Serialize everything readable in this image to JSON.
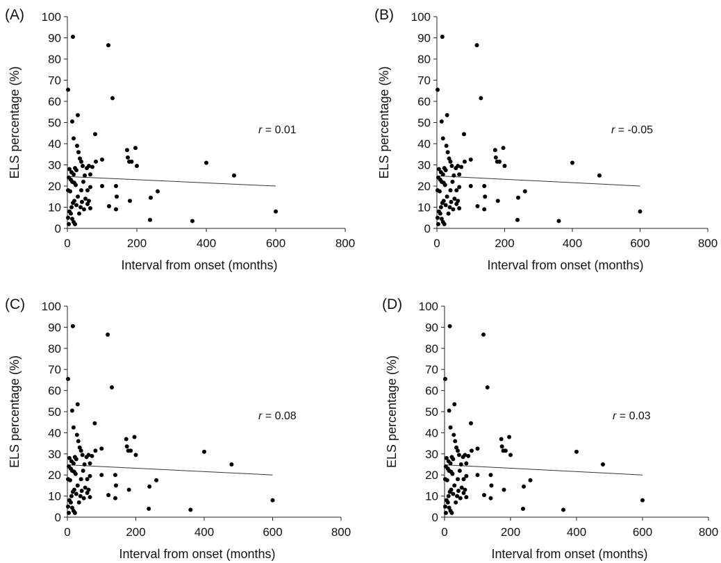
{
  "chart_data": [
    {
      "panel_label": "(A)",
      "type": "scatter",
      "xlabel": "Interval from onset (months)",
      "ylabel": "ELS percentage (%)",
      "xlim": [
        0,
        800
      ],
      "ylim": [
        0,
        100
      ],
      "xticks": [
        "0",
        "200",
        "400",
        "600",
        "800"
      ],
      "yticks": [
        "0",
        "10",
        "20",
        "30",
        "40",
        "50",
        "60",
        "70",
        "80",
        "90",
        "100"
      ],
      "grid": false,
      "annotation": {
        "symbol": "r",
        "text": " = 0.01"
      },
      "trendline": {
        "x": [
          0,
          600
        ],
        "y": [
          24.5,
          20.0
        ]
      },
      "points": [
        [
          2,
          65.5
        ],
        [
          16,
          90.5
        ],
        [
          118,
          86.5
        ],
        [
          130,
          61.5
        ],
        [
          30,
          53.5
        ],
        [
          14,
          50.5
        ],
        [
          18,
          42.5
        ],
        [
          80,
          44.5
        ],
        [
          28,
          39
        ],
        [
          32,
          36
        ],
        [
          36,
          33
        ],
        [
          40,
          31.5
        ],
        [
          44,
          29.5
        ],
        [
          6,
          28
        ],
        [
          12,
          26.5
        ],
        [
          18,
          25.5
        ],
        [
          22,
          28.5
        ],
        [
          26,
          27.5
        ],
        [
          4,
          24
        ],
        [
          10,
          23
        ],
        [
          14,
          22
        ],
        [
          20,
          21.5
        ],
        [
          24,
          20.5
        ],
        [
          2,
          18
        ],
        [
          8,
          17.5
        ],
        [
          46,
          22
        ],
        [
          50,
          25
        ],
        [
          56,
          28.5
        ],
        [
          62,
          29.5
        ],
        [
          66,
          25.5
        ],
        [
          72,
          29
        ],
        [
          82,
          31.5
        ],
        [
          100,
          32.5
        ],
        [
          58,
          18
        ],
        [
          66,
          19.5
        ],
        [
          100,
          20
        ],
        [
          172,
          37
        ],
        [
          174,
          33.5
        ],
        [
          178,
          31.5
        ],
        [
          185,
          31.5
        ],
        [
          196,
          38
        ],
        [
          200,
          29.5
        ],
        [
          140,
          20
        ],
        [
          142,
          15
        ],
        [
          120,
          10.5
        ],
        [
          140,
          9
        ],
        [
          180,
          13
        ],
        [
          240,
          14.5
        ],
        [
          260,
          17.5
        ],
        [
          238,
          4
        ],
        [
          360,
          3.5
        ],
        [
          400,
          31
        ],
        [
          480,
          25
        ],
        [
          600,
          8
        ],
        [
          6,
          8
        ],
        [
          10,
          7
        ],
        [
          14,
          4.5
        ],
        [
          18,
          3
        ],
        [
          22,
          2
        ],
        [
          2,
          5
        ],
        [
          16,
          12
        ],
        [
          20,
          13
        ],
        [
          26,
          11
        ],
        [
          30,
          15
        ],
        [
          38,
          10
        ],
        [
          42,
          12.5
        ],
        [
          48,
          9
        ],
        [
          52,
          14
        ],
        [
          58,
          11.5
        ],
        [
          62,
          13
        ],
        [
          66,
          9.5
        ],
        [
          4,
          2
        ],
        [
          12,
          10
        ],
        [
          34,
          7
        ],
        [
          40,
          18
        ]
      ]
    },
    {
      "panel_label": "(B)",
      "type": "scatter",
      "xlabel": "Interval from onset (months)",
      "ylabel": "ELS percentage (%)",
      "xlim": [
        0,
        800
      ],
      "ylim": [
        0,
        100
      ],
      "xticks": [
        "0",
        "200",
        "400",
        "600",
        "800"
      ],
      "yticks": [
        "0",
        "10",
        "20",
        "30",
        "40",
        "50",
        "60",
        "70",
        "80",
        "90",
        "100"
      ],
      "grid": false,
      "annotation": {
        "symbol": "r",
        "text": " = -0.05"
      },
      "trendline": {
        "x": [
          0,
          600
        ],
        "y": [
          24.8,
          20.0
        ]
      },
      "points": [
        [
          2,
          65.5
        ],
        [
          16,
          90.5
        ],
        [
          118,
          86.5
        ],
        [
          130,
          61.5
        ],
        [
          30,
          53.5
        ],
        [
          14,
          50.5
        ],
        [
          18,
          42.5
        ],
        [
          80,
          44.5
        ],
        [
          28,
          39
        ],
        [
          32,
          36
        ],
        [
          36,
          33
        ],
        [
          40,
          31.5
        ],
        [
          44,
          29.5
        ],
        [
          6,
          28
        ],
        [
          12,
          26.5
        ],
        [
          18,
          25.5
        ],
        [
          22,
          28.5
        ],
        [
          26,
          27.5
        ],
        [
          4,
          24
        ],
        [
          10,
          23
        ],
        [
          14,
          22
        ],
        [
          20,
          21.5
        ],
        [
          24,
          20.5
        ],
        [
          2,
          18
        ],
        [
          8,
          17.5
        ],
        [
          46,
          22
        ],
        [
          50,
          25
        ],
        [
          56,
          28.5
        ],
        [
          62,
          29.5
        ],
        [
          66,
          25.5
        ],
        [
          72,
          29
        ],
        [
          82,
          31.5
        ],
        [
          100,
          32.5
        ],
        [
          58,
          18
        ],
        [
          66,
          19.5
        ],
        [
          100,
          20
        ],
        [
          172,
          37
        ],
        [
          174,
          33.5
        ],
        [
          178,
          31.5
        ],
        [
          185,
          31.5
        ],
        [
          196,
          38
        ],
        [
          200,
          29.5
        ],
        [
          140,
          20
        ],
        [
          142,
          15
        ],
        [
          120,
          10.5
        ],
        [
          140,
          9
        ],
        [
          180,
          13
        ],
        [
          240,
          14.5
        ],
        [
          260,
          17.5
        ],
        [
          238,
          4
        ],
        [
          360,
          3.5
        ],
        [
          400,
          31
        ],
        [
          480,
          25
        ],
        [
          600,
          8
        ],
        [
          6,
          8
        ],
        [
          10,
          7
        ],
        [
          14,
          4.5
        ],
        [
          18,
          3
        ],
        [
          22,
          2
        ],
        [
          2,
          5
        ],
        [
          16,
          12
        ],
        [
          20,
          13
        ],
        [
          26,
          11
        ],
        [
          30,
          15
        ],
        [
          38,
          10
        ],
        [
          42,
          12.5
        ],
        [
          48,
          9
        ],
        [
          52,
          14
        ],
        [
          58,
          11.5
        ],
        [
          62,
          13
        ],
        [
          66,
          9.5
        ],
        [
          4,
          2
        ],
        [
          12,
          10
        ],
        [
          34,
          7
        ],
        [
          40,
          18
        ]
      ]
    },
    {
      "panel_label": "(C)",
      "type": "scatter",
      "xlabel": "Interval from onset (months)",
      "ylabel": "ELS percentage (%)",
      "xlim": [
        0,
        800
      ],
      "ylim": [
        0,
        100
      ],
      "xticks": [
        "0",
        "200",
        "400",
        "600",
        "800"
      ],
      "yticks": [
        "0",
        "10",
        "20",
        "30",
        "40",
        "50",
        "60",
        "70",
        "80",
        "90",
        "100"
      ],
      "grid": false,
      "annotation": {
        "symbol": "r",
        "text": " = 0.08"
      },
      "trendline": {
        "x": [
          0,
          600
        ],
        "y": [
          24.8,
          20.0
        ]
      },
      "points": [
        [
          2,
          65.5
        ],
        [
          16,
          90.5
        ],
        [
          118,
          86.5
        ],
        [
          130,
          61.5
        ],
        [
          30,
          53.5
        ],
        [
          14,
          50.5
        ],
        [
          18,
          42.5
        ],
        [
          80,
          44.5
        ],
        [
          28,
          39
        ],
        [
          32,
          36
        ],
        [
          36,
          33
        ],
        [
          40,
          31.5
        ],
        [
          44,
          29.5
        ],
        [
          6,
          28
        ],
        [
          12,
          26.5
        ],
        [
          18,
          25.5
        ],
        [
          22,
          28.5
        ],
        [
          26,
          27.5
        ],
        [
          4,
          24
        ],
        [
          10,
          23
        ],
        [
          14,
          22
        ],
        [
          20,
          21.5
        ],
        [
          24,
          20.5
        ],
        [
          2,
          18
        ],
        [
          8,
          17.5
        ],
        [
          46,
          22
        ],
        [
          50,
          25
        ],
        [
          56,
          28.5
        ],
        [
          62,
          29.5
        ],
        [
          66,
          25.5
        ],
        [
          72,
          29
        ],
        [
          82,
          31.5
        ],
        [
          100,
          32.5
        ],
        [
          58,
          18
        ],
        [
          66,
          19.5
        ],
        [
          100,
          20
        ],
        [
          172,
          37
        ],
        [
          174,
          33.5
        ],
        [
          178,
          31.5
        ],
        [
          185,
          31.5
        ],
        [
          196,
          38
        ],
        [
          200,
          29.5
        ],
        [
          140,
          20
        ],
        [
          142,
          15
        ],
        [
          120,
          10.5
        ],
        [
          140,
          9
        ],
        [
          180,
          13
        ],
        [
          240,
          14.5
        ],
        [
          260,
          17.5
        ],
        [
          238,
          4
        ],
        [
          360,
          3.5
        ],
        [
          400,
          31
        ],
        [
          480,
          25
        ],
        [
          600,
          8
        ],
        [
          6,
          8
        ],
        [
          10,
          7
        ],
        [
          14,
          4.5
        ],
        [
          18,
          3
        ],
        [
          22,
          2
        ],
        [
          2,
          5
        ],
        [
          16,
          12
        ],
        [
          20,
          13
        ],
        [
          26,
          11
        ],
        [
          30,
          15
        ],
        [
          38,
          10
        ],
        [
          42,
          12.5
        ],
        [
          48,
          9
        ],
        [
          52,
          14
        ],
        [
          58,
          11.5
        ],
        [
          62,
          13
        ],
        [
          66,
          9.5
        ],
        [
          4,
          2
        ],
        [
          12,
          10
        ],
        [
          34,
          7
        ],
        [
          40,
          18
        ]
      ]
    },
    {
      "panel_label": "(D)",
      "type": "scatter",
      "xlabel": "Interval from onset (months)",
      "ylabel": "ELS percentage (%)",
      "xlim": [
        0,
        800
      ],
      "ylim": [
        0,
        100
      ],
      "xticks": [
        "0",
        "200",
        "400",
        "600",
        "800"
      ],
      "yticks": [
        "0",
        "10",
        "20",
        "30",
        "40",
        "50",
        "60",
        "70",
        "80",
        "90",
        "100"
      ],
      "grid": false,
      "annotation": {
        "symbol": "r",
        "text": " = 0.03"
      },
      "trendline": {
        "x": [
          0,
          600
        ],
        "y": [
          24.8,
          20.0
        ]
      },
      "points": [
        [
          2,
          65.5
        ],
        [
          16,
          90.5
        ],
        [
          118,
          86.5
        ],
        [
          130,
          61.5
        ],
        [
          30,
          53.5
        ],
        [
          14,
          50.5
        ],
        [
          18,
          42.5
        ],
        [
          80,
          44.5
        ],
        [
          28,
          39
        ],
        [
          32,
          36
        ],
        [
          36,
          33
        ],
        [
          40,
          31.5
        ],
        [
          44,
          29.5
        ],
        [
          6,
          28
        ],
        [
          12,
          26.5
        ],
        [
          18,
          25.5
        ],
        [
          22,
          28.5
        ],
        [
          26,
          27.5
        ],
        [
          4,
          24
        ],
        [
          10,
          23
        ],
        [
          14,
          22
        ],
        [
          20,
          21.5
        ],
        [
          24,
          20.5
        ],
        [
          2,
          18
        ],
        [
          8,
          17.5
        ],
        [
          46,
          22
        ],
        [
          50,
          25
        ],
        [
          56,
          28.5
        ],
        [
          62,
          29.5
        ],
        [
          66,
          25.5
        ],
        [
          72,
          29
        ],
        [
          82,
          31.5
        ],
        [
          100,
          32.5
        ],
        [
          58,
          18
        ],
        [
          66,
          19.5
        ],
        [
          100,
          20
        ],
        [
          172,
          37
        ],
        [
          174,
          33.5
        ],
        [
          178,
          31.5
        ],
        [
          185,
          31.5
        ],
        [
          196,
          38
        ],
        [
          200,
          29.5
        ],
        [
          140,
          20
        ],
        [
          142,
          15
        ],
        [
          120,
          10.5
        ],
        [
          140,
          9
        ],
        [
          180,
          13
        ],
        [
          240,
          14.5
        ],
        [
          260,
          17.5
        ],
        [
          238,
          4
        ],
        [
          360,
          3.5
        ],
        [
          400,
          31
        ],
        [
          480,
          25
        ],
        [
          600,
          8
        ],
        [
          6,
          8
        ],
        [
          10,
          7
        ],
        [
          14,
          4.5
        ],
        [
          18,
          3
        ],
        [
          22,
          2
        ],
        [
          2,
          5
        ],
        [
          16,
          12
        ],
        [
          20,
          13
        ],
        [
          26,
          11
        ],
        [
          30,
          15
        ],
        [
          38,
          10
        ],
        [
          42,
          12.5
        ],
        [
          48,
          9
        ],
        [
          52,
          14
        ],
        [
          58,
          11.5
        ],
        [
          62,
          13
        ],
        [
          66,
          9.5
        ],
        [
          4,
          2
        ],
        [
          12,
          10
        ],
        [
          34,
          7
        ],
        [
          40,
          18
        ]
      ]
    }
  ]
}
